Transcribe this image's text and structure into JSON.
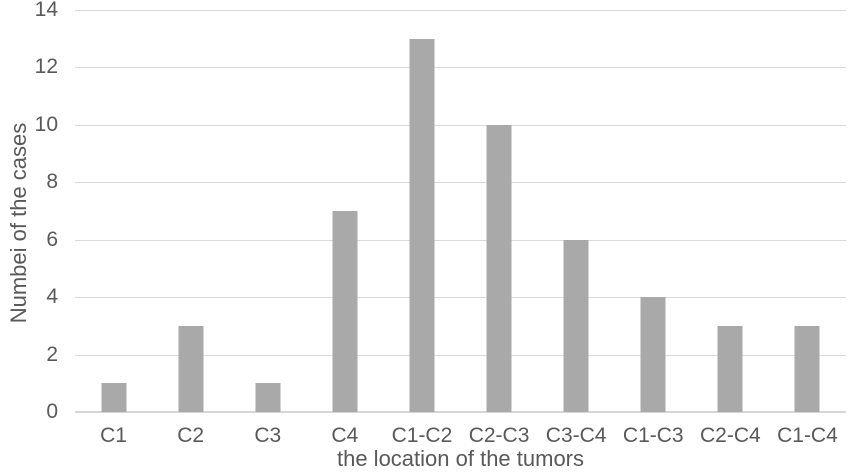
{
  "figure": {
    "background_color": "#ffffff",
    "text_color": "#595959"
  },
  "chart_data": {
    "type": "bar",
    "title": "",
    "categories": [
      "C1",
      "C2",
      "C3",
      "C4",
      "C1-C2",
      "C2-C3",
      "C3-C4",
      "C1-C3",
      "C2-C4",
      "C1-C4"
    ],
    "values": [
      1,
      3,
      1,
      7,
      13,
      10,
      6,
      4,
      3,
      3
    ],
    "xlabel": "the location of the tumors",
    "ylabel": "Numbei of the cases",
    "ylim": [
      0,
      14
    ],
    "yticks": [
      0,
      2,
      4,
      6,
      8,
      10,
      12,
      14
    ],
    "grid": true,
    "legend": "none",
    "bar_color": "#a9a9a9",
    "gridline_color": "#d9d9d9",
    "axis_line_color": "#d6d6d6"
  }
}
